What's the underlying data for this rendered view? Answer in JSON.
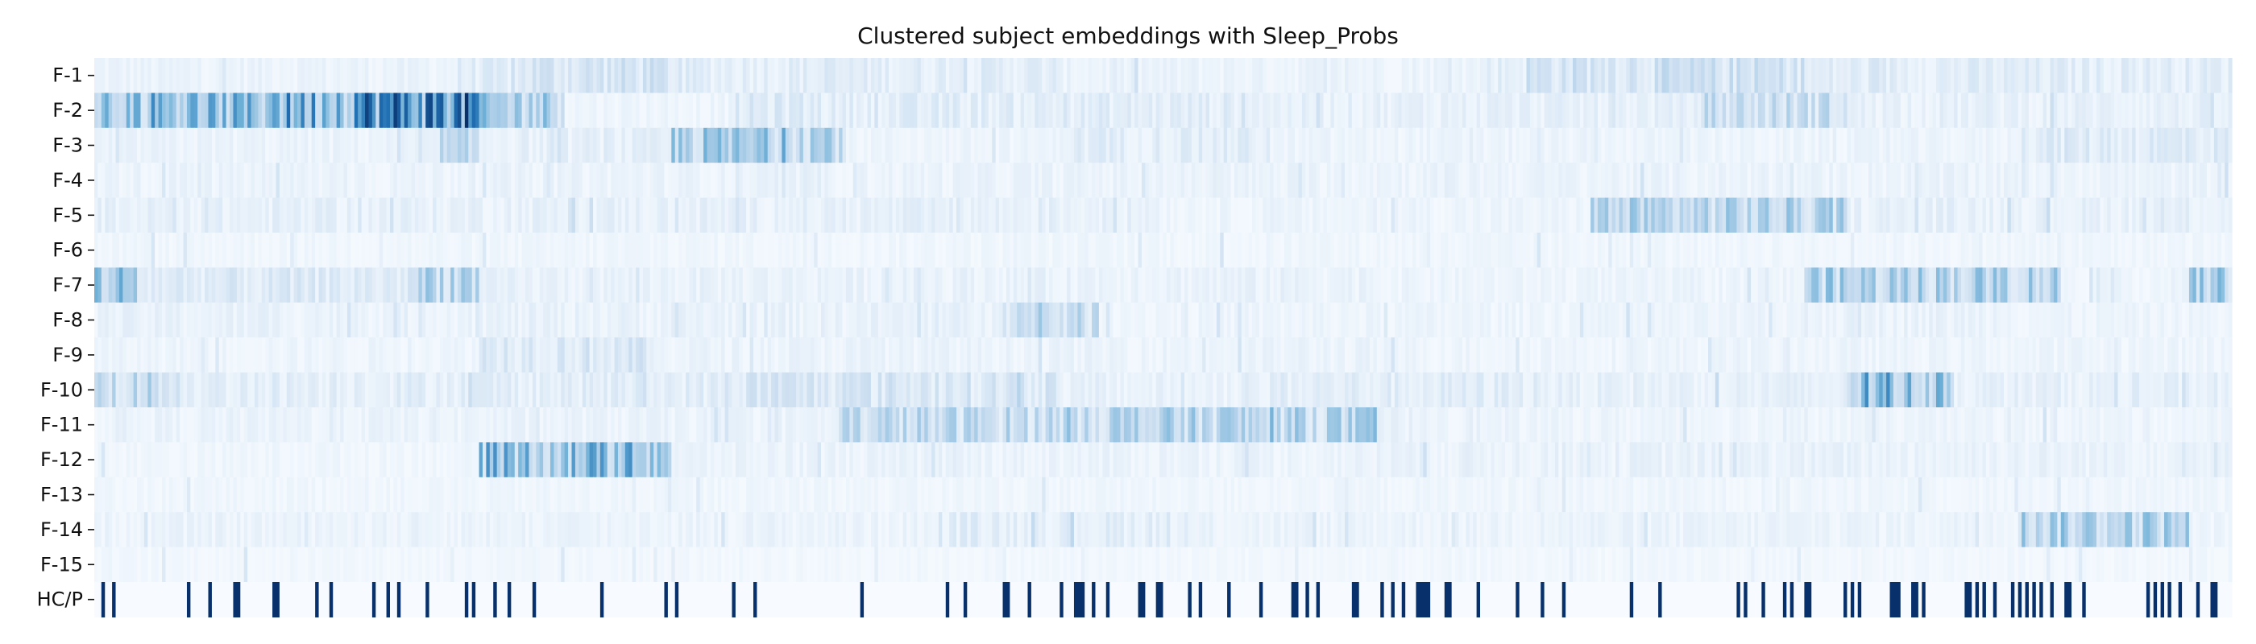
{
  "chart_data": {
    "type": "heatmap",
    "title": "Clustered subject embeddings with Sleep_Probs",
    "xlabel": "",
    "ylabel": "",
    "rows": [
      "F-1",
      "F-2",
      "F-3",
      "F-4",
      "F-5",
      "F-6",
      "F-7",
      "F-8",
      "F-9",
      "F-10",
      "F-11",
      "F-12",
      "F-13",
      "F-14",
      "F-15",
      "HC/P"
    ],
    "n_columns": 600,
    "colormap": "Blues",
    "value_range": [
      0,
      1
    ],
    "grid": false,
    "legend": "none",
    "intensity_profile": [
      {
        "row": "F-1",
        "bands": [
          [
            0,
            0.17,
            0.06
          ],
          [
            0.2,
            0.27,
            0.16
          ],
          [
            0.27,
            0.45,
            0.1
          ],
          [
            0.45,
            0.65,
            0.06
          ],
          [
            0.67,
            0.8,
            0.17
          ],
          [
            0.8,
            1.0,
            0.1
          ]
        ]
      },
      {
        "row": "F-2",
        "bands": [
          [
            0,
            0.08,
            0.38
          ],
          [
            0.08,
            0.12,
            0.48
          ],
          [
            0.12,
            0.18,
            0.62
          ],
          [
            0.18,
            0.22,
            0.3
          ],
          [
            0.22,
            0.3,
            0.05
          ],
          [
            0.3,
            0.34,
            0.12
          ],
          [
            0.34,
            0.55,
            0.1
          ],
          [
            0.55,
            0.75,
            0.08
          ],
          [
            0.75,
            0.82,
            0.2
          ],
          [
            0.82,
            1.0,
            0.08
          ]
        ]
      },
      {
        "row": "F-3",
        "bands": [
          [
            0,
            0.16,
            0.06
          ],
          [
            0.16,
            0.18,
            0.2
          ],
          [
            0.18,
            0.27,
            0.08
          ],
          [
            0.27,
            0.35,
            0.3
          ],
          [
            0.35,
            0.45,
            0.05
          ],
          [
            0.45,
            0.55,
            0.1
          ],
          [
            0.55,
            0.9,
            0.05
          ],
          [
            0.9,
            1.0,
            0.12
          ]
        ]
      },
      {
        "row": "F-4",
        "bands": [
          [
            0,
            1.0,
            0.06
          ]
        ]
      },
      {
        "row": "F-5",
        "bands": [
          [
            0,
            0.5,
            0.08
          ],
          [
            0.5,
            0.7,
            0.05
          ],
          [
            0.7,
            0.82,
            0.25
          ],
          [
            0.82,
            1.0,
            0.08
          ]
        ]
      },
      {
        "row": "F-6",
        "bands": [
          [
            0,
            1.0,
            0.04
          ]
        ]
      },
      {
        "row": "F-7",
        "bands": [
          [
            0,
            0.02,
            0.35
          ],
          [
            0.02,
            0.15,
            0.12
          ],
          [
            0.15,
            0.18,
            0.28
          ],
          [
            0.18,
            0.6,
            0.07
          ],
          [
            0.6,
            0.8,
            0.05
          ],
          [
            0.8,
            0.92,
            0.28
          ],
          [
            0.92,
            0.98,
            0.05
          ],
          [
            0.98,
            1.0,
            0.3
          ]
        ]
      },
      {
        "row": "F-8",
        "bands": [
          [
            0,
            0.42,
            0.07
          ],
          [
            0.42,
            0.47,
            0.2
          ],
          [
            0.47,
            0.8,
            0.05
          ],
          [
            0.8,
            0.9,
            0.07
          ],
          [
            0.9,
            1.0,
            0.05
          ]
        ]
      },
      {
        "row": "F-9",
        "bands": [
          [
            0,
            0.18,
            0.05
          ],
          [
            0.18,
            0.26,
            0.14
          ],
          [
            0.26,
            0.6,
            0.06
          ],
          [
            0.6,
            1.0,
            0.05
          ]
        ]
      },
      {
        "row": "F-10",
        "bands": [
          [
            0,
            0.04,
            0.22
          ],
          [
            0.04,
            0.18,
            0.1
          ],
          [
            0.18,
            0.3,
            0.1
          ],
          [
            0.3,
            0.45,
            0.15
          ],
          [
            0.45,
            0.55,
            0.07
          ],
          [
            0.55,
            0.68,
            0.1
          ],
          [
            0.68,
            0.82,
            0.08
          ],
          [
            0.82,
            0.87,
            0.35
          ],
          [
            0.87,
            1.0,
            0.08
          ]
        ]
      },
      {
        "row": "F-11",
        "bands": [
          [
            0,
            0.35,
            0.06
          ],
          [
            0.35,
            0.45,
            0.22
          ],
          [
            0.45,
            0.6,
            0.25
          ],
          [
            0.6,
            0.65,
            0.07
          ],
          [
            0.65,
            1.0,
            0.05
          ]
        ]
      },
      {
        "row": "F-12",
        "bands": [
          [
            0,
            0.18,
            0.04
          ],
          [
            0.18,
            0.27,
            0.38
          ],
          [
            0.27,
            0.6,
            0.06
          ],
          [
            0.6,
            0.85,
            0.07
          ],
          [
            0.85,
            1.0,
            0.07
          ]
        ]
      },
      {
        "row": "F-13",
        "bands": [
          [
            0,
            1.0,
            0.04
          ]
        ]
      },
      {
        "row": "F-14",
        "bands": [
          [
            0,
            0.4,
            0.06
          ],
          [
            0.4,
            0.5,
            0.1
          ],
          [
            0.5,
            0.9,
            0.06
          ],
          [
            0.9,
            0.98,
            0.28
          ],
          [
            0.98,
            1.0,
            0.05
          ]
        ]
      },
      {
        "row": "F-15",
        "bands": [
          [
            0,
            1.0,
            0.03
          ]
        ]
      }
    ],
    "hc_p_marked_fraction": 0.18
  }
}
